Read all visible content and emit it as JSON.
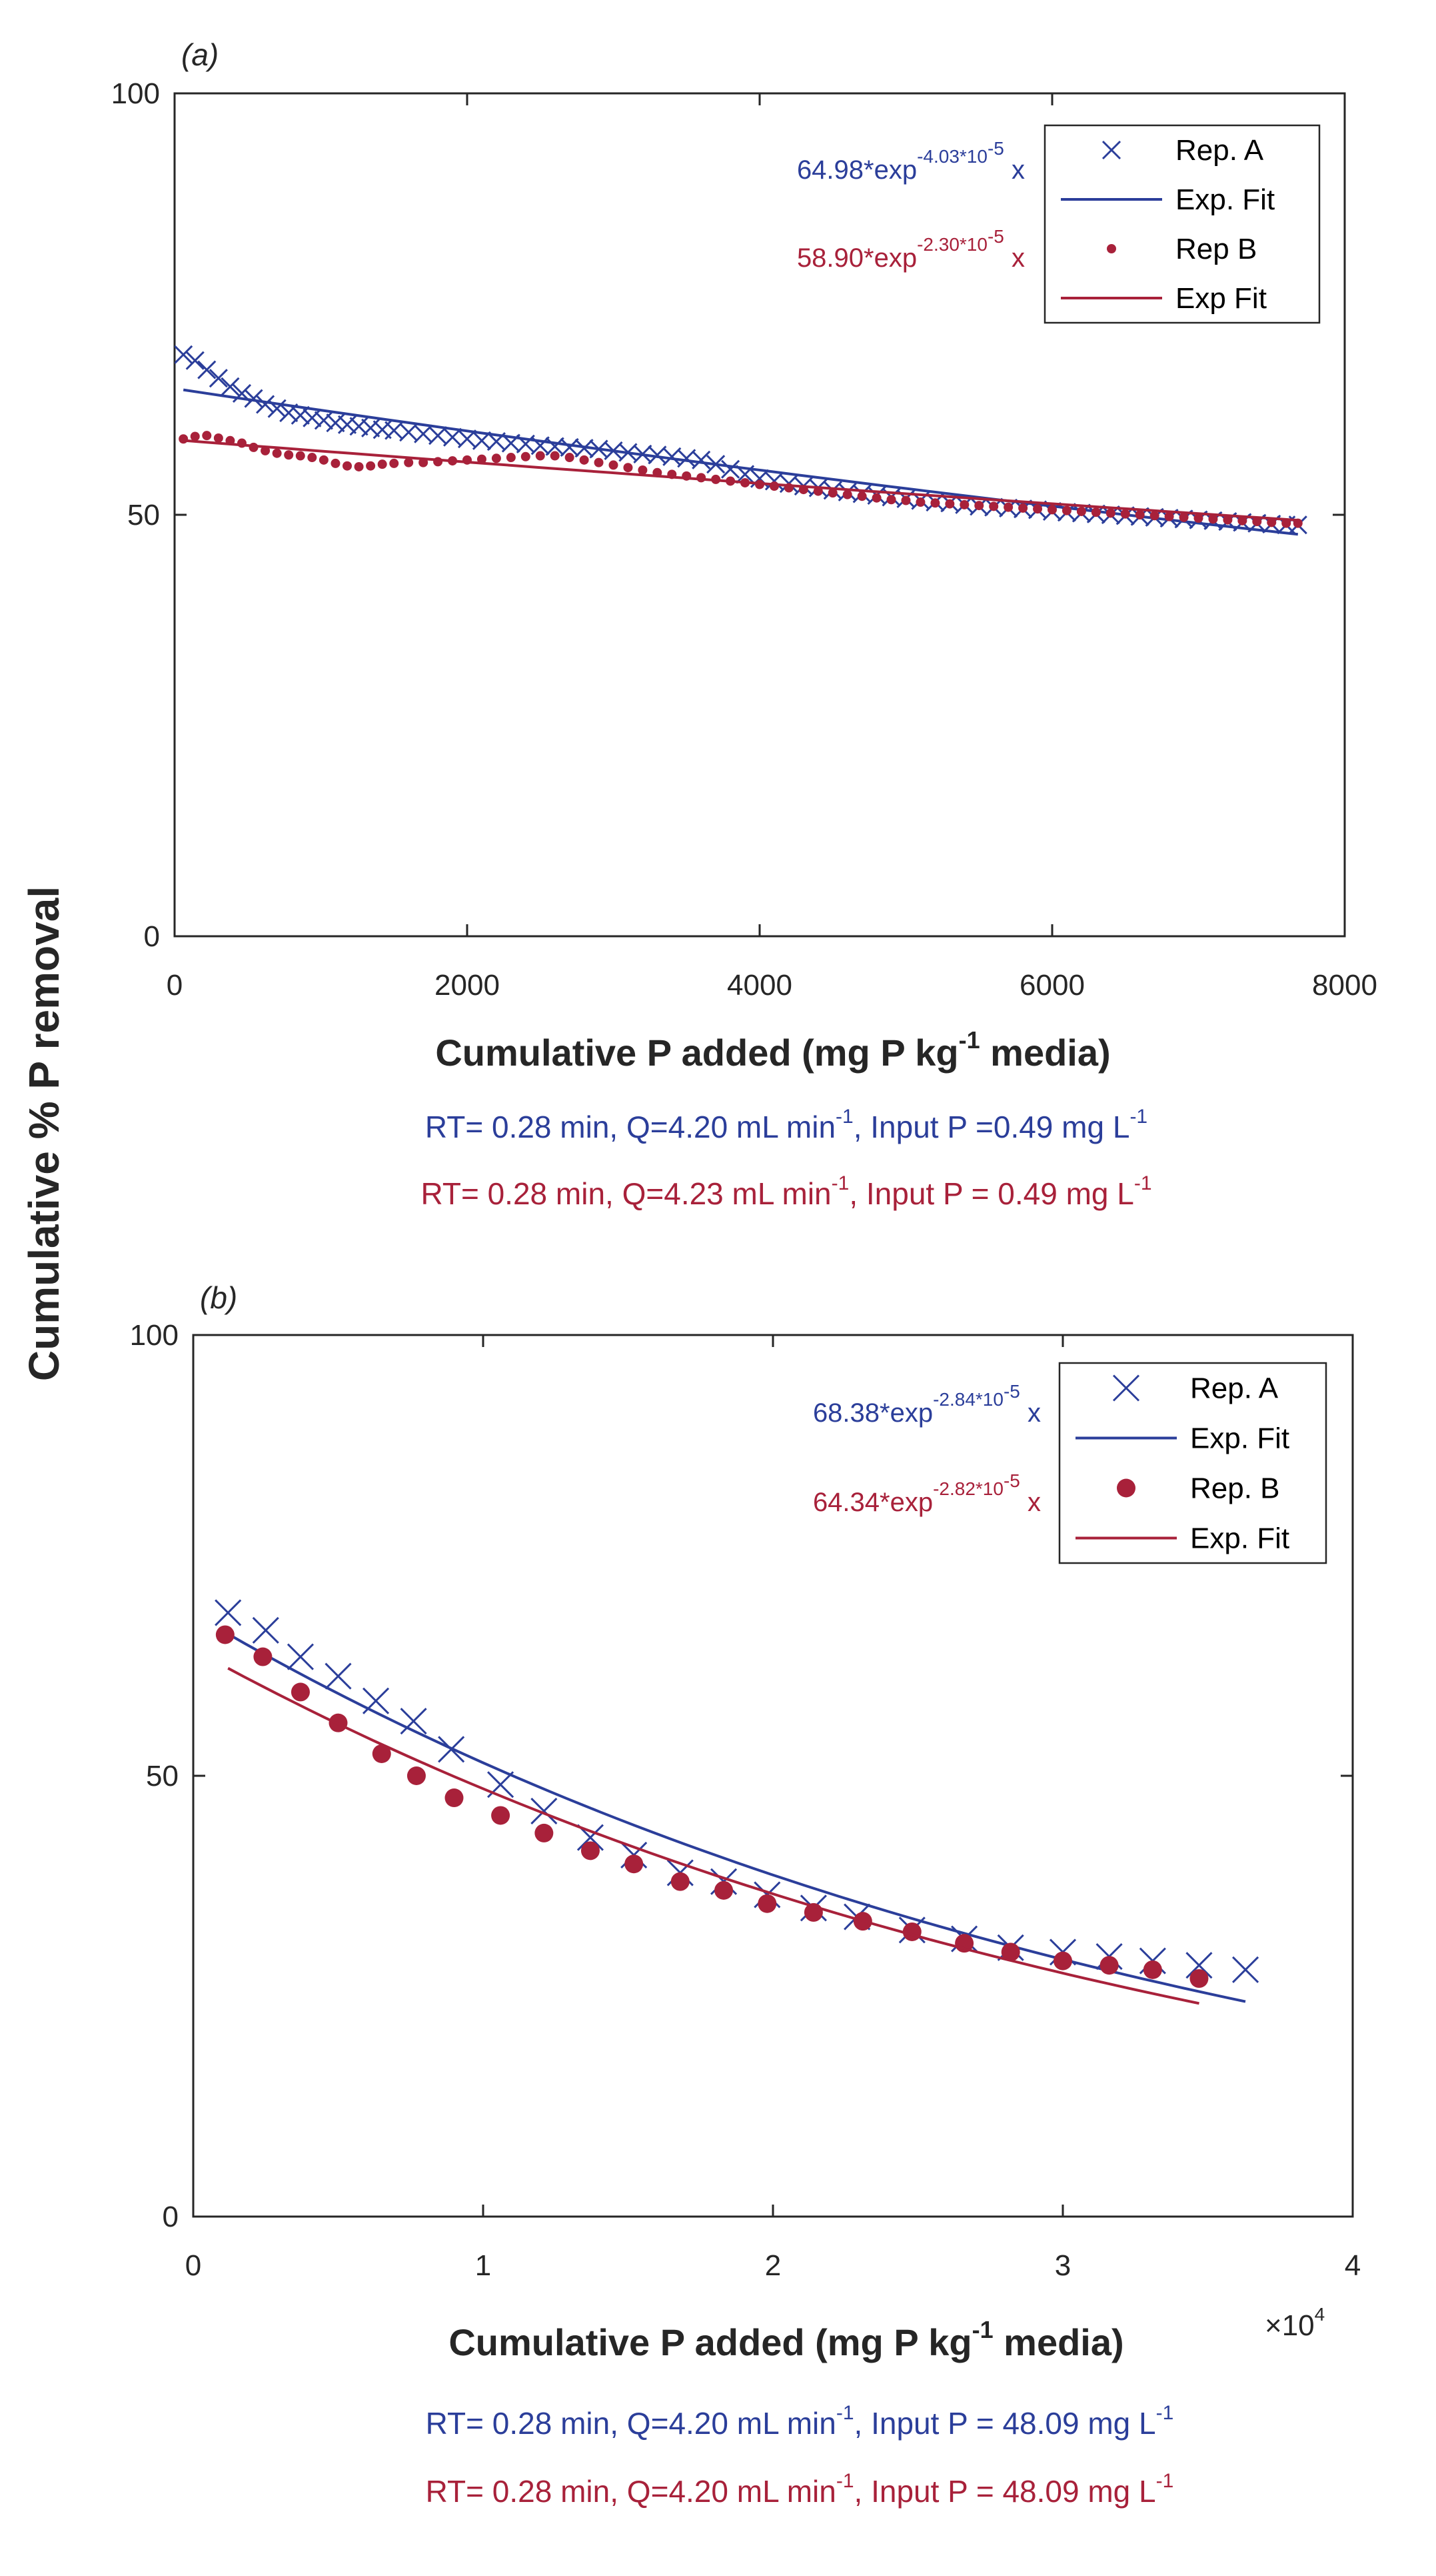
{
  "colors": {
    "blue": "#2B3E9A",
    "red": "#A8213A",
    "axis": "#262626"
  },
  "ylabel": "Cumulative % P removal",
  "chart_data": [
    {
      "panel_label": "(a)",
      "type": "scatter",
      "xlabel_parts": [
        "Cumulative P added (mg P kg",
        "-1",
        " media)"
      ],
      "ylabel": "Cumulative % P removal",
      "xlim": [
        0,
        8000
      ],
      "ylim": [
        0,
        100
      ],
      "xticks": [
        0,
        2000,
        4000,
        6000,
        8000
      ],
      "xtick_labels": [
        "0",
        "2000",
        "4000",
        "6000",
        "8000"
      ],
      "yticks": [
        0,
        50,
        100
      ],
      "ytick_labels": [
        "0",
        "50",
        "100"
      ],
      "exponent_label": "",
      "legend": [
        "Rep. A",
        "Exp. Fit",
        "Rep B",
        "Exp Fit"
      ],
      "equations": [
        {
          "main": "64.98*exp",
          "sup": "-4.03*10",
          "sup2": "-5",
          "tail": " x",
          "color": "#2B3E9A"
        },
        {
          "main": "58.90*exp",
          "sup": "-2.30*10",
          "sup2": "-5",
          "tail": " x",
          "color": "#A8213A"
        }
      ],
      "series": [
        {
          "name": "Rep. A",
          "marker": "x",
          "color": "#2B3E9A",
          "markersize": 13,
          "x": [
            60,
            140,
            220,
            300,
            380,
            460,
            540,
            620,
            700,
            780,
            860,
            940,
            1020,
            1100,
            1180,
            1260,
            1340,
            1420,
            1500,
            1600,
            1700,
            1800,
            1900,
            2000,
            2100,
            2200,
            2300,
            2400,
            2500,
            2600,
            2700,
            2800,
            2900,
            3000,
            3100,
            3200,
            3300,
            3400,
            3500,
            3600,
            3700,
            3800,
            3900,
            4000,
            4100,
            4200,
            4300,
            4400,
            4500,
            4600,
            4700,
            4800,
            4900,
            5000,
            5100,
            5200,
            5300,
            5400,
            5500,
            5600,
            5700,
            5800,
            5900,
            6000,
            6100,
            6200,
            6300,
            6400,
            6500,
            6600,
            6700,
            6800,
            6900,
            7000,
            7100,
            7200,
            7300,
            7400,
            7500,
            7600,
            7680
          ],
          "y": [
            69,
            68.3,
            67.2,
            66.2,
            65.2,
            64.4,
            63.8,
            63.1,
            62.6,
            62.1,
            61.8,
            61.5,
            61.2,
            60.9,
            60.7,
            60.5,
            60.3,
            60.1,
            60,
            59.8,
            59.6,
            59.4,
            59.2,
            59,
            58.8,
            58.7,
            58.5,
            58.4,
            58.2,
            58.1,
            58,
            57.9,
            57.8,
            57.6,
            57.4,
            57.2,
            57.1,
            56.9,
            56.7,
            56.5,
            56,
            55.4,
            54.8,
            54.3,
            54,
            53.7,
            53.4,
            53.2,
            52.9,
            52.7,
            52.5,
            52.3,
            52.1,
            51.9,
            51.7,
            51.5,
            51.4,
            51.2,
            51,
            50.9,
            50.8,
            50.7,
            50.6,
            50.4,
            50.3,
            50.2,
            50.1,
            50,
            49.9,
            49.8,
            49.7,
            49.6,
            49.5,
            49.4,
            49.3,
            49.2,
            49.1,
            49,
            48.9,
            48.8,
            48.8
          ]
        },
        {
          "name": "Exp. Fit",
          "marker": "line",
          "color": "#2B3E9A",
          "x": [
            60,
            7680
          ],
          "coef": 64.98,
          "rate": -4.03e-05
        },
        {
          "name": "Rep B",
          "marker": "dot",
          "color": "#A8213A",
          "markersize": 7,
          "x": [
            60,
            140,
            220,
            300,
            380,
            460,
            540,
            620,
            700,
            780,
            860,
            940,
            1020,
            1100,
            1180,
            1260,
            1340,
            1420,
            1500,
            1600,
            1700,
            1800,
            1900,
            2000,
            2100,
            2200,
            2300,
            2400,
            2500,
            2600,
            2700,
            2800,
            2900,
            3000,
            3100,
            3200,
            3300,
            3400,
            3500,
            3600,
            3700,
            3800,
            3900,
            4000,
            4100,
            4200,
            4300,
            4400,
            4500,
            4600,
            4700,
            4800,
            4900,
            5000,
            5100,
            5200,
            5300,
            5400,
            5500,
            5600,
            5700,
            5800,
            5900,
            6000,
            6100,
            6200,
            6300,
            6400,
            6500,
            6600,
            6700,
            6800,
            6900,
            7000,
            7100,
            7200,
            7300,
            7400,
            7500,
            7600,
            7680
          ],
          "y": [
            59,
            59.3,
            59.4,
            59.1,
            58.8,
            58.5,
            58,
            57.6,
            57.3,
            57.1,
            57,
            56.8,
            56.5,
            56.1,
            55.8,
            55.7,
            55.8,
            56,
            56.1,
            56.2,
            56.2,
            56.3,
            56.4,
            56.5,
            56.6,
            56.7,
            56.8,
            56.9,
            57,
            57,
            56.8,
            56.5,
            56.2,
            55.9,
            55.6,
            55.3,
            55,
            54.8,
            54.6,
            54.4,
            54.2,
            54,
            53.8,
            53.6,
            53.4,
            53.2,
            53,
            52.8,
            52.6,
            52.4,
            52.2,
            52,
            51.8,
            51.7,
            51.5,
            51.4,
            51.3,
            51.2,
            51.1,
            51,
            50.9,
            50.8,
            50.7,
            50.6,
            50.5,
            50.4,
            50.3,
            50.2,
            50.1,
            50,
            49.9,
            49.8,
            49.7,
            49.6,
            49.5,
            49.4,
            49.3,
            49.2,
            49.1,
            49,
            49
          ]
        },
        {
          "name": "Exp Fit",
          "marker": "line",
          "color": "#A8213A",
          "x": [
            60,
            7680
          ],
          "coef": 58.9,
          "rate": -2.3e-05
        }
      ],
      "conditions": [
        {
          "parts": [
            "RT= 0.28 min, Q=4.20 mL min",
            "-1",
            ", Input P =0.49 mg L",
            "-1"
          ],
          "color": "#2B3E9A"
        },
        {
          "parts": [
            "RT= 0.28 min, Q=4.23 mL min",
            "-1",
            ", Input P = 0.49 mg L",
            "-1"
          ],
          "color": "#A8213A"
        }
      ]
    },
    {
      "panel_label": "(b)",
      "type": "scatter",
      "xlabel_parts": [
        "Cumulative P added (mg P kg",
        "-1",
        " media)"
      ],
      "ylabel": "Cumulative % P removal",
      "xlim": [
        0,
        40000
      ],
      "ylim": [
        0,
        100
      ],
      "xticks": [
        0,
        10000,
        20000,
        30000,
        40000
      ],
      "xtick_labels": [
        "0",
        "1",
        "2",
        "3",
        "4"
      ],
      "yticks": [
        0,
        50,
        100
      ],
      "ytick_labels": [
        "0",
        "50",
        "100"
      ],
      "exponent_label": "×10",
      "exponent_sup": "4",
      "legend": [
        "Rep. A",
        "Exp. Fit",
        "Rep. B",
        "Exp. Fit"
      ],
      "equations": [
        {
          "main": "68.38*exp",
          "sup": "-2.84*10",
          "sup2": "-5",
          "tail": " x",
          "color": "#2B3E9A"
        },
        {
          "main": "64.34*exp",
          "sup": "-2.82*10",
          "sup2": "-5",
          "tail": " x",
          "color": "#A8213A"
        }
      ],
      "series": [
        {
          "name": "Rep. A",
          "marker": "x",
          "color": "#2B3E9A",
          "markersize": 19,
          "x": [
            1200,
            2500,
            3700,
            5000,
            6300,
            7600,
            8900,
            10600,
            12100,
            13700,
            15200,
            16800,
            18300,
            19800,
            21400,
            22900,
            24800,
            26600,
            28200,
            30000,
            31600,
            33100,
            34700,
            36300
          ],
          "y": [
            68.5,
            66.5,
            63.5,
            61.3,
            58.5,
            56.2,
            53,
            49,
            46,
            43,
            41,
            39,
            38,
            36.5,
            35,
            34,
            32.5,
            31.5,
            30.5,
            30,
            29.5,
            29,
            28.5,
            28
          ]
        },
        {
          "name": "Exp. Fit",
          "marker": "line",
          "color": "#2B3E9A",
          "x": [
            1200,
            36300
          ],
          "coef": 68.38,
          "rate": -2.84e-05
        },
        {
          "name": "Rep. B",
          "marker": "dot",
          "color": "#A8213A",
          "markersize": 14,
          "x": [
            1100,
            2400,
            3700,
            5000,
            6500,
            7700,
            9000,
            10600,
            12100,
            13700,
            15200,
            16800,
            18300,
            19800,
            21400,
            23100,
            24800,
            26600,
            28200,
            30000,
            31600,
            33100,
            34700
          ],
          "y": [
            66,
            63.5,
            59.5,
            56,
            52.5,
            50,
            47.5,
            45.5,
            43.5,
            41.5,
            40,
            38,
            37,
            35.5,
            34.5,
            33.5,
            32.3,
            31,
            30,
            29,
            28.5,
            28,
            27
          ]
        },
        {
          "name": "Exp. Fit",
          "marker": "line",
          "color": "#A8213A",
          "x": [
            1200,
            34700
          ],
          "coef": 64.34,
          "rate": -2.82e-05
        }
      ],
      "conditions": [
        {
          "parts": [
            "RT= 0.28 min, Q=4.20 mL min",
            "-1",
            ", Input P = 48.09 mg L",
            "-1"
          ],
          "color": "#2B3E9A"
        },
        {
          "parts": [
            "RT= 0.28 min, Q=4.20 mL min",
            "-1",
            ", Input P = 48.09 mg L",
            "-1"
          ],
          "color": "#A8213A"
        }
      ]
    }
  ]
}
